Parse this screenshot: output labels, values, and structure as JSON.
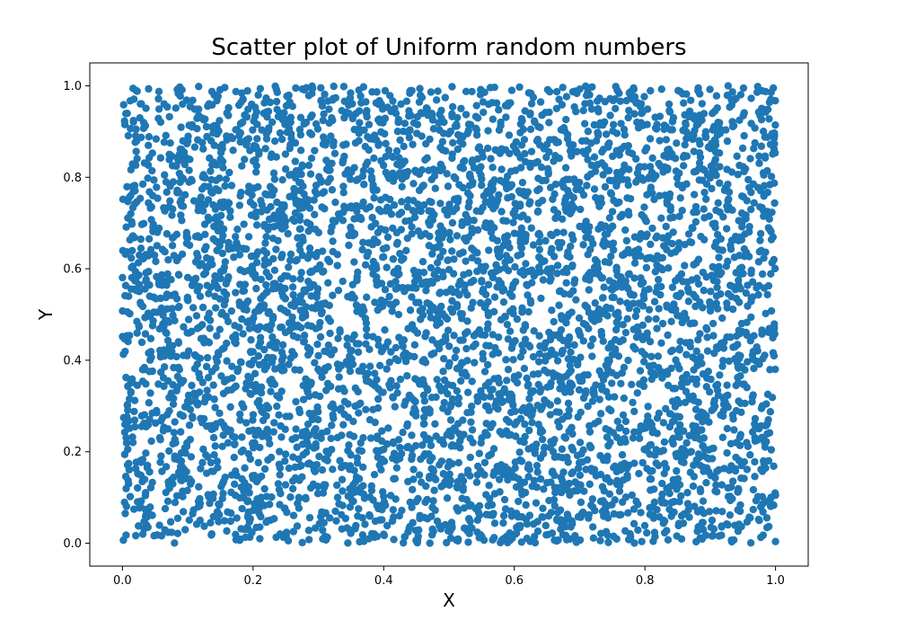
{
  "chart_data": {
    "type": "scatter",
    "title": "Scatter plot of Uniform random numbers",
    "xlabel": "X",
    "ylabel": "Y",
    "xlim": [
      -0.05,
      1.05
    ],
    "ylim": [
      -0.05,
      1.05
    ],
    "xticks": [
      0.0,
      0.2,
      0.4,
      0.6,
      0.8,
      1.0
    ],
    "yticks": [
      0.0,
      0.2,
      0.4,
      0.6,
      0.8,
      1.0
    ],
    "xtick_labels": [
      "0.0",
      "0.2",
      "0.4",
      "0.6",
      "0.8",
      "1.0"
    ],
    "ytick_labels": [
      "0.0",
      "0.2",
      "0.4",
      "0.6",
      "0.8",
      "1.0"
    ],
    "grid": false,
    "marker_color": "#1f77b4",
    "distribution": "uniform",
    "x_range": [
      0.0,
      1.0
    ],
    "y_range": [
      0.0,
      1.0
    ],
    "point_count": 5000
  }
}
